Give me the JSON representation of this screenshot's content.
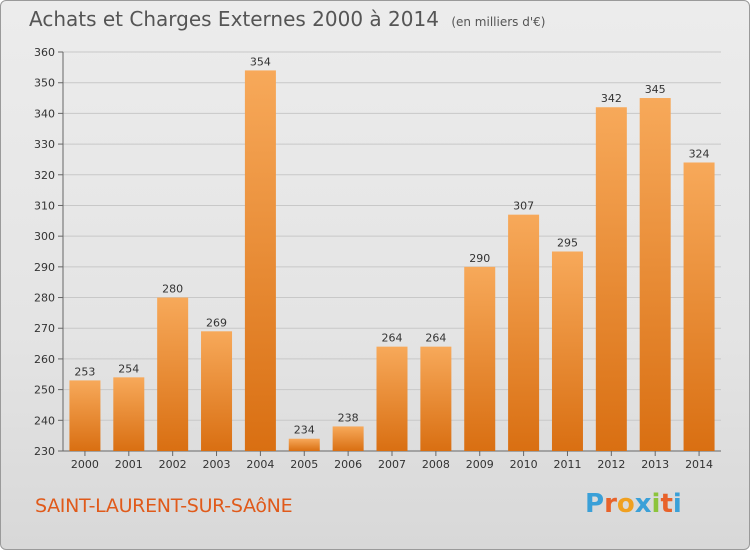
{
  "header": {
    "title": "Achats et Charges Externes 2000 à 2014",
    "unit": "(en milliers d'€)"
  },
  "footer": {
    "commune": "SAINT-LAURENT-SUR-SAôNE",
    "brand_letters": [
      "P",
      "r",
      "o",
      "x",
      "i",
      "t",
      "i"
    ],
    "brand_colors": [
      "#3aa0d8",
      "#e8622a",
      "#f0a020",
      "#3aa0d8",
      "#8cc43c",
      "#e8622a",
      "#3aa0d8"
    ]
  },
  "chart_data": {
    "type": "bar",
    "title": "Achats et Charges Externes 2000 à 2014",
    "subtitle": "(en milliers d'€)",
    "xlabel": "",
    "ylabel": "",
    "categories": [
      "2000",
      "2001",
      "2002",
      "2003",
      "2004",
      "2005",
      "2006",
      "2007",
      "2008",
      "2009",
      "2010",
      "2011",
      "2012",
      "2013",
      "2014"
    ],
    "values": [
      253,
      254,
      280,
      269,
      354,
      234,
      238,
      264,
      264,
      290,
      307,
      295,
      342,
      345,
      324
    ],
    "ylim": [
      230,
      360
    ],
    "yticks": [
      230,
      240,
      250,
      260,
      270,
      280,
      290,
      300,
      310,
      320,
      330,
      340,
      350,
      360
    ],
    "grid": true,
    "legend": "none",
    "bar_color_top": "#f7a95a",
    "bar_color_bottom": "#d96f12"
  }
}
